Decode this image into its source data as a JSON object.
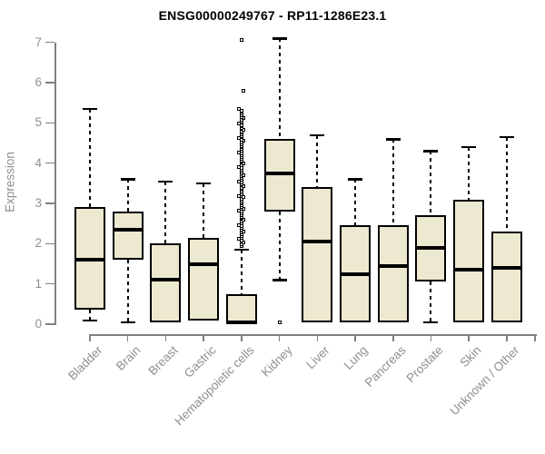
{
  "colors": {
    "box_fill": "#EDE8D0",
    "box_border": "#000000",
    "median": "#000000",
    "whisker": "#000000",
    "axis": "#808080",
    "tick_label": "#8f8f8f",
    "title": "#000000",
    "background": "#ffffff"
  },
  "chart_data": {
    "type": "boxplot",
    "title": "ENSG00000249767 - RP11-1286E23.1",
    "ylabel": "Expression",
    "xlabel": "",
    "ylim": [
      0,
      7
    ],
    "yticks": [
      "0",
      "1",
      "2",
      "3",
      "4",
      "5",
      "6",
      "7"
    ],
    "grid": false,
    "legend": "none",
    "categories": [
      "Bladder",
      "Brain",
      "Breast",
      "Gastric",
      "Hematopoietic cells",
      "Kidney",
      "Liver",
      "Lung",
      "Pancreas",
      "Prostate",
      "Skin",
      "Unknown / Other"
    ],
    "boxes": [
      {
        "category": "Bladder",
        "whisker_low": 0.1,
        "q1": 0.35,
        "median": 1.6,
        "q3": 2.9,
        "whisker_high": 5.35,
        "outliers": []
      },
      {
        "category": "Brain",
        "whisker_low": 0.05,
        "q1": 1.6,
        "median": 2.35,
        "q3": 2.8,
        "whisker_high": 3.6,
        "outliers": []
      },
      {
        "category": "Breast",
        "whisker_low": 0.05,
        "q1": 0.05,
        "median": 1.1,
        "q3": 2.0,
        "whisker_high": 3.55,
        "outliers": []
      },
      {
        "category": "Gastric",
        "whisker_low": 0.1,
        "q1": 0.1,
        "median": 1.5,
        "q3": 2.15,
        "whisker_high": 3.5,
        "outliers": []
      },
      {
        "category": "Hematopoietic cells",
        "whisker_low": 0.0,
        "q1": 0.0,
        "median": 0.05,
        "q3": 0.75,
        "whisker_high": 1.85,
        "outliers": [
          1.95,
          1.99,
          2.03,
          2.07,
          2.11,
          2.15,
          2.19,
          2.23,
          2.27,
          2.31,
          2.35,
          2.39,
          2.43,
          2.47,
          2.51,
          2.55,
          2.59,
          2.63,
          2.67,
          2.71,
          2.75,
          2.79,
          2.83,
          2.87,
          2.91,
          2.95,
          2.99,
          3.03,
          3.07,
          3.11,
          3.15,
          3.19,
          3.23,
          3.27,
          3.31,
          3.35,
          3.39,
          3.43,
          3.47,
          3.51,
          3.55,
          3.59,
          3.63,
          3.67,
          3.71,
          3.75,
          3.79,
          3.83,
          3.87,
          3.91,
          3.95,
          3.99,
          4.03,
          4.07,
          4.11,
          4.15,
          4.19,
          4.23,
          4.27,
          4.31,
          4.35,
          4.39,
          4.43,
          4.47,
          4.51,
          4.55,
          4.59,
          4.63,
          4.67,
          4.71,
          4.75,
          4.79,
          4.83,
          4.87,
          4.91,
          4.95,
          4.99,
          5.03,
          5.07,
          5.11,
          5.15,
          5.19,
          5.23,
          5.27,
          5.31,
          5.35,
          5.8,
          7.05
        ]
      },
      {
        "category": "Kidney",
        "whisker_low": 1.1,
        "q1": 2.8,
        "median": 3.75,
        "q3": 4.6,
        "whisker_high": 7.1,
        "outliers": [
          0.05
        ]
      },
      {
        "category": "Liver",
        "whisker_low": 0.05,
        "q1": 0.05,
        "median": 2.05,
        "q3": 3.4,
        "whisker_high": 4.7,
        "outliers": []
      },
      {
        "category": "Lung",
        "whisker_low": 0.05,
        "q1": 0.05,
        "median": 1.25,
        "q3": 2.45,
        "whisker_high": 3.6,
        "outliers": []
      },
      {
        "category": "Pancreas",
        "whisker_low": 0.05,
        "q1": 0.05,
        "median": 1.45,
        "q3": 2.45,
        "whisker_high": 4.6,
        "outliers": []
      },
      {
        "category": "Prostate",
        "whisker_low": 0.05,
        "q1": 1.05,
        "median": 1.9,
        "q3": 2.7,
        "whisker_high": 4.3,
        "outliers": []
      },
      {
        "category": "Skin",
        "whisker_low": 0.05,
        "q1": 0.05,
        "median": 1.35,
        "q3": 3.1,
        "whisker_high": 4.4,
        "outliers": []
      },
      {
        "category": "Unknown / Other",
        "whisker_low": 0.05,
        "q1": 0.05,
        "median": 1.4,
        "q3": 2.3,
        "whisker_high": 4.65,
        "outliers": []
      }
    ]
  }
}
